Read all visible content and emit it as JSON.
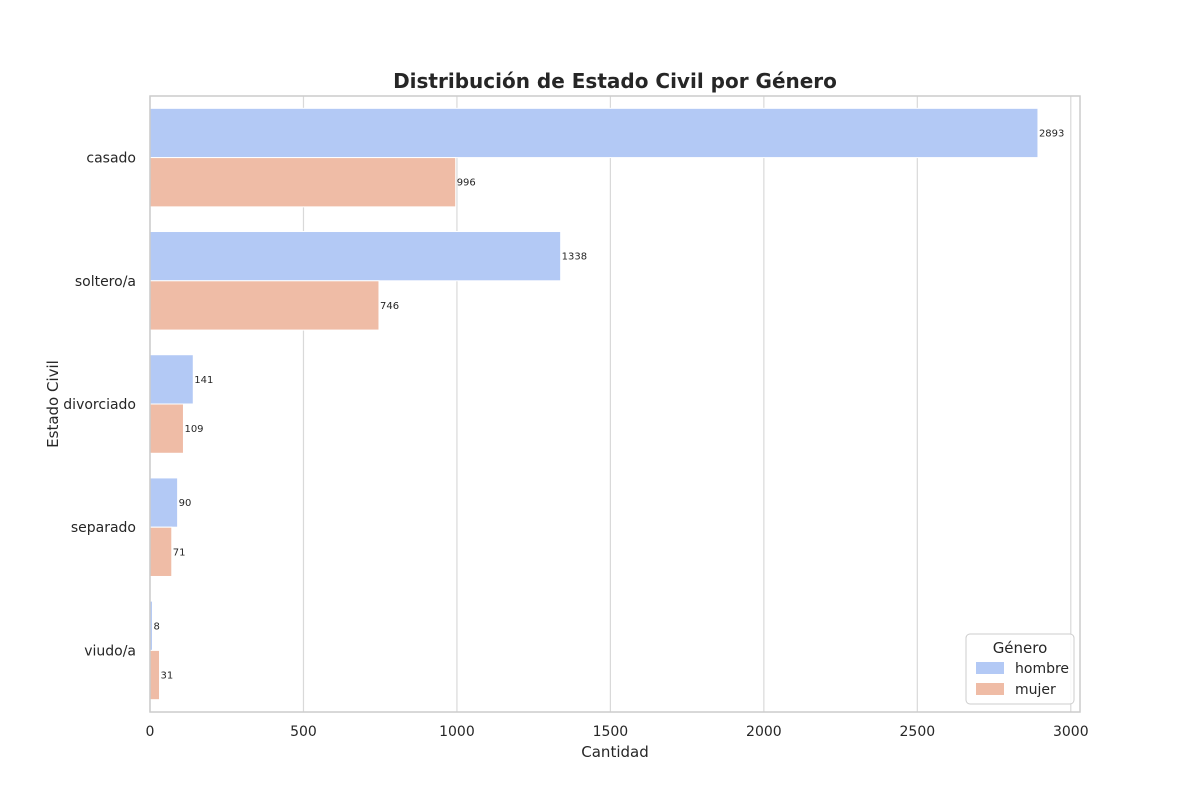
{
  "chart_data": {
    "type": "bar",
    "orientation": "horizontal",
    "title": "Distribución de Estado Civil por Género",
    "xlabel": "Cantidad",
    "ylabel": "Estado Civil",
    "xlim": [
      0,
      3030
    ],
    "xticks": [
      0,
      500,
      1000,
      1500,
      2000,
      2500,
      3000
    ],
    "grid": true,
    "categories": [
      "casado",
      "soltero/a",
      "divorciado",
      "separado",
      "viudo/a"
    ],
    "series": [
      {
        "name": "hombre",
        "color": "#b3c9f5",
        "values": [
          2893,
          1338,
          141,
          90,
          8
        ]
      },
      {
        "name": "mujer",
        "color": "#efbca6",
        "values": [
          996,
          746,
          109,
          71,
          31
        ]
      }
    ],
    "legend": {
      "title": "Género",
      "position": "bottom-right"
    }
  }
}
